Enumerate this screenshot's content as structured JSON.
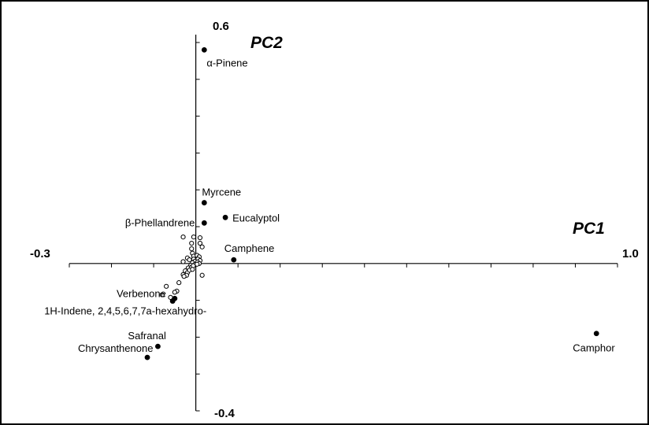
{
  "chart_data": {
    "type": "scatter",
    "xlabel": "PC1",
    "ylabel": "PC2",
    "xlim": [
      -0.3,
      1.0
    ],
    "ylim": [
      -0.4,
      0.6
    ],
    "x_end_labels": [
      "-0.3",
      "1.0"
    ],
    "y_end_labels": [
      "0.6",
      "-0.4"
    ],
    "labeled_points": [
      {
        "label": "α-Pinene",
        "x": 0.02,
        "y": 0.58
      },
      {
        "label": "Myrcene",
        "x": 0.02,
        "y": 0.165
      },
      {
        "label": "Eucalyptol",
        "x": 0.07,
        "y": 0.125
      },
      {
        "label": "β-Phellandrene",
        "x": 0.02,
        "y": 0.11
      },
      {
        "label": "Camphene",
        "x": 0.09,
        "y": 0.01
      },
      {
        "label": "Verbenone",
        "x": -0.05,
        "y": -0.095
      },
      {
        "label": "1H-Indene, 2,4,5,6,7,7a-hexahydro-",
        "x": -0.055,
        "y": -0.102
      },
      {
        "label": "Safranal",
        "x": -0.09,
        "y": -0.225
      },
      {
        "label": "Chrysanthenone",
        "x": -0.115,
        "y": -0.255
      },
      {
        "label": "Camphor",
        "x": 0.95,
        "y": -0.19
      }
    ],
    "unlabeled_points": [
      {
        "x": -0.03,
        "y": 0.072
      },
      {
        "x": -0.005,
        "y": 0.072
      },
      {
        "x": 0.01,
        "y": 0.07
      },
      {
        "x": 0.01,
        "y": 0.055
      },
      {
        "x": -0.01,
        "y": 0.055
      },
      {
        "x": -0.01,
        "y": 0.04
      },
      {
        "x": -0.008,
        "y": 0.028
      },
      {
        "x": 0.015,
        "y": 0.045
      },
      {
        "x": -0.005,
        "y": 0.02
      },
      {
        "x": 0.003,
        "y": 0.022
      },
      {
        "x": 0.008,
        "y": 0.018
      },
      {
        "x": -0.02,
        "y": 0.015
      },
      {
        "x": -0.03,
        "y": 0.005
      },
      {
        "x": -0.015,
        "y": 0.01
      },
      {
        "x": -0.005,
        "y": 0.012
      },
      {
        "x": 0.005,
        "y": 0.012
      },
      {
        "x": 0.01,
        "y": 0.008
      },
      {
        "x": -0.002,
        "y": 0.006
      },
      {
        "x": 0.004,
        "y": 0.004
      },
      {
        "x": -0.008,
        "y": 0.002
      },
      {
        "x": 0.008,
        "y": 0.0
      },
      {
        "x": -0.012,
        "y": -0.005
      },
      {
        "x": -0.003,
        "y": -0.003
      },
      {
        "x": 0.003,
        "y": -0.002
      },
      {
        "x": -0.018,
        "y": -0.012
      },
      {
        "x": -0.01,
        "y": -0.01
      },
      {
        "x": -0.006,
        "y": -0.006
      },
      {
        "x": -0.025,
        "y": -0.02
      },
      {
        "x": -0.02,
        "y": -0.025
      },
      {
        "x": -0.015,
        "y": -0.018
      },
      {
        "x": -0.008,
        "y": -0.016
      },
      {
        "x": -0.03,
        "y": -0.03
      },
      {
        "x": -0.022,
        "y": -0.032
      },
      {
        "x": -0.028,
        "y": -0.035
      },
      {
        "x": 0.015,
        "y": -0.032
      },
      {
        "x": -0.04,
        "y": -0.052
      },
      {
        "x": -0.045,
        "y": -0.075
      },
      {
        "x": -0.05,
        "y": -0.078
      },
      {
        "x": -0.07,
        "y": -0.062
      },
      {
        "x": -0.08,
        "y": -0.085
      },
      {
        "x": -0.06,
        "y": -0.092
      }
    ]
  }
}
